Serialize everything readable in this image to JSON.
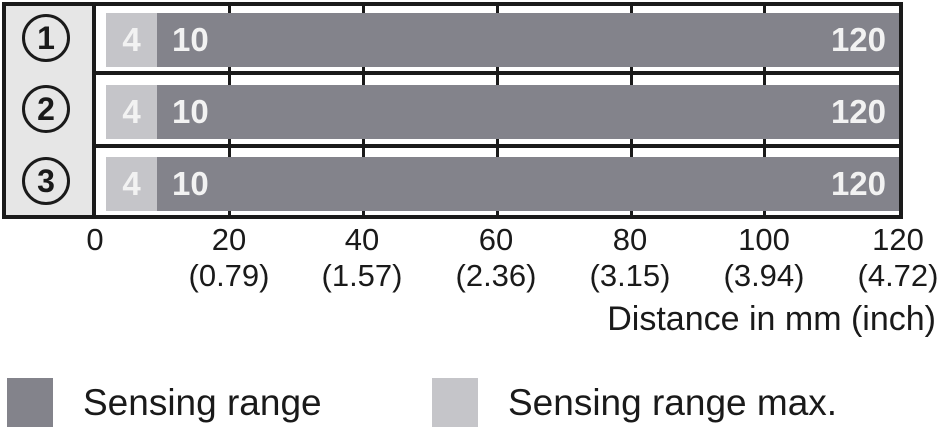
{
  "colors": {
    "sensing_range": "#83838b",
    "sensing_range_max": "#c5c5c9",
    "row_header_bg": "#e6e6e6",
    "line_black": "#1a1a1a",
    "bar_value_text": "#f2f2f2"
  },
  "chart_data": {
    "type": "bar",
    "orientation": "horizontal",
    "title": "",
    "xlabel": "Distance in mm (inch)",
    "xlim_mm": [
      0,
      120
    ],
    "grid": true,
    "rows": [
      {
        "badge": "1",
        "sensing_range_mm": [
          10,
          120
        ],
        "sensing_range_max_mm": [
          4,
          120
        ],
        "labels": {
          "max": "4",
          "start": "10",
          "end": "120"
        }
      },
      {
        "badge": "2",
        "sensing_range_mm": [
          10,
          120
        ],
        "sensing_range_max_mm": [
          4,
          120
        ],
        "labels": {
          "max": "4",
          "start": "10",
          "end": "120"
        }
      },
      {
        "badge": "3",
        "sensing_range_mm": [
          10,
          120
        ],
        "sensing_range_max_mm": [
          4,
          120
        ],
        "labels": {
          "max": "4",
          "start": "10",
          "end": "120"
        }
      }
    ],
    "x_axis": {
      "tick_values_mm": [
        0,
        20,
        40,
        60,
        80,
        100,
        120
      ],
      "ticks": [
        {
          "mm": "0",
          "inch": ""
        },
        {
          "mm": "20",
          "inch": "(0.79)"
        },
        {
          "mm": "40",
          "inch": "(1.57)"
        },
        {
          "mm": "60",
          "inch": "(2.36)"
        },
        {
          "mm": "80",
          "inch": "(3.15)"
        },
        {
          "mm": "100",
          "inch": "(3.94)"
        },
        {
          "mm": "120",
          "inch": "(4.72)"
        }
      ],
      "title": "Distance in mm (inch)"
    },
    "legend": [
      {
        "swatch": "dark-gray",
        "label": "Sensing range"
      },
      {
        "swatch": "light-gray",
        "label": "Sensing range max."
      }
    ]
  }
}
